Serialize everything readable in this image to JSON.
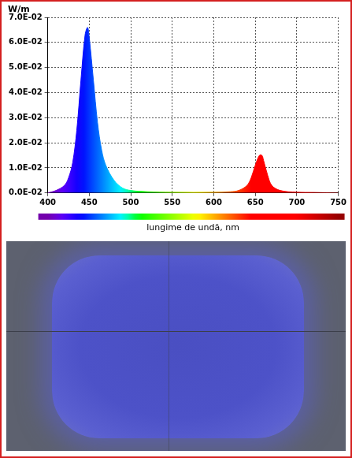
{
  "chart_data": {
    "type": "line",
    "y_label": "W/m",
    "x_label": "lungime de undă, nm",
    "x": [
      400,
      410,
      420,
      425,
      430,
      435,
      440,
      445,
      448,
      450,
      455,
      460,
      465,
      470,
      480,
      490,
      500,
      520,
      550,
      600,
      620,
      630,
      640,
      645,
      650,
      655,
      658,
      660,
      665,
      670,
      680,
      700,
      720,
      750
    ],
    "values": [
      0,
      0.001,
      0.003,
      0.006,
      0.012,
      0.025,
      0.045,
      0.063,
      0.066,
      0.062,
      0.045,
      0.028,
      0.017,
      0.011,
      0.005,
      0.002,
      0.001,
      0.0005,
      0.0003,
      0.0003,
      0.0005,
      0.001,
      0.003,
      0.006,
      0.011,
      0.015,
      0.015,
      0.013,
      0.007,
      0.003,
      0.001,
      0.0003,
      0.0002,
      0
    ],
    "xlim": [
      400,
      750
    ],
    "ylim": [
      0,
      0.07
    ],
    "xticks": [
      400,
      450,
      500,
      550,
      600,
      650,
      700,
      750
    ],
    "yticks": [
      {
        "value": 0,
        "label": "0.0E-02"
      },
      {
        "value": 0.01,
        "label": "1.0E-02"
      },
      {
        "value": 0.02,
        "label": "2.0E-02"
      },
      {
        "value": 0.03,
        "label": "3.0E-02"
      },
      {
        "value": 0.04,
        "label": "4.0E-02"
      },
      {
        "value": 0.05,
        "label": "5.0E-02"
      },
      {
        "value": 0.06,
        "label": "6.0E-02"
      },
      {
        "value": 0.07,
        "label": "7.0E-02"
      }
    ],
    "grid": true
  }
}
